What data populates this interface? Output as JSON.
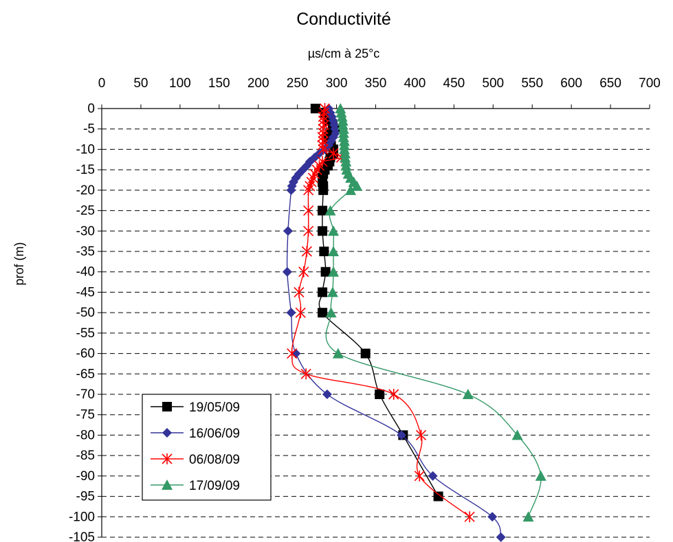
{
  "chart_data": {
    "type": "line",
    "title": "Conductivité",
    "xlabel": "µs/cm à 25°c",
    "ylabel": "prof (m)",
    "xlim": [
      0,
      700
    ],
    "ylim": [
      -105,
      0
    ],
    "x_ticks": [
      "0",
      "50",
      "100",
      "150",
      "200",
      "250",
      "300",
      "350",
      "400",
      "450",
      "500",
      "550",
      "600",
      "650",
      "700"
    ],
    "y_ticks": [
      "0",
      "-5",
      "-10",
      "-15",
      "-20",
      "-25",
      "-30",
      "-35",
      "-40",
      "-45",
      "-50",
      "-55",
      "-60",
      "-65",
      "-70",
      "-75",
      "-80",
      "-85",
      "-90",
      "-95",
      "-100",
      "-105"
    ],
    "x_axis_position": "top",
    "grid": "horizontal-dashed",
    "legend_position": "bottom-left",
    "series": [
      {
        "name": "19/05/09",
        "color": "#000000",
        "marker": "square",
        "points": [
          [
            273,
            0
          ],
          [
            285,
            -1
          ],
          [
            289,
            -2
          ],
          [
            291,
            -3
          ],
          [
            295,
            -4
          ],
          [
            298,
            -5
          ],
          [
            292,
            -6
          ],
          [
            290,
            -7
          ],
          [
            291,
            -8
          ],
          [
            293,
            -9
          ],
          [
            296,
            -10
          ],
          [
            296,
            -11
          ],
          [
            292,
            -12
          ],
          [
            291,
            -13
          ],
          [
            289,
            -14
          ],
          [
            285,
            -15
          ],
          [
            283,
            -16
          ],
          [
            282,
            -17
          ],
          [
            282,
            -18
          ],
          [
            283,
            -19
          ],
          [
            283,
            -20
          ],
          [
            282,
            -25
          ],
          [
            282,
            -30
          ],
          [
            284,
            -35
          ],
          [
            286,
            -40
          ],
          [
            282,
            -45
          ],
          [
            282,
            -50
          ],
          [
            337,
            -60
          ],
          [
            355,
            -70
          ],
          [
            385,
            -80
          ],
          [
            430,
            -95
          ]
        ]
      },
      {
        "name": "16/06/09",
        "color": "#333399",
        "marker": "diamond",
        "points": [
          [
            290,
            0
          ],
          [
            292,
            -1
          ],
          [
            294,
            -2
          ],
          [
            296,
            -3
          ],
          [
            297,
            -4
          ],
          [
            298,
            -5
          ],
          [
            299,
            -6
          ],
          [
            296,
            -7
          ],
          [
            293,
            -8
          ],
          [
            290,
            -9
          ],
          [
            285,
            -10
          ],
          [
            278,
            -11
          ],
          [
            272,
            -12
          ],
          [
            266,
            -13
          ],
          [
            262,
            -14
          ],
          [
            257,
            -15
          ],
          [
            252,
            -16
          ],
          [
            248,
            -17
          ],
          [
            245,
            -18
          ],
          [
            243,
            -19
          ],
          [
            242,
            -20
          ],
          [
            238,
            -30
          ],
          [
            237,
            -40
          ],
          [
            242,
            -50
          ],
          [
            248,
            -60
          ],
          [
            288,
            -70
          ],
          [
            383,
            -80
          ],
          [
            423,
            -90
          ],
          [
            499,
            -100
          ],
          [
            510,
            -105
          ]
        ]
      },
      {
        "name": "06/08/09",
        "color": "#ff0000",
        "marker": "star",
        "points": [
          [
            285,
            0
          ],
          [
            284,
            -1
          ],
          [
            283,
            -2
          ],
          [
            283,
            -3
          ],
          [
            284,
            -4
          ],
          [
            283,
            -5
          ],
          [
            283,
            -6
          ],
          [
            282,
            -7
          ],
          [
            283,
            -8
          ],
          [
            282,
            -9
          ],
          [
            283,
            -10
          ],
          [
            296,
            -11
          ],
          [
            306,
            -12
          ],
          [
            282,
            -13
          ],
          [
            278,
            -14
          ],
          [
            275,
            -15
          ],
          [
            272,
            -16
          ],
          [
            270,
            -17
          ],
          [
            268,
            -18
          ],
          [
            266,
            -19
          ],
          [
            264,
            -20
          ],
          [
            264,
            -25
          ],
          [
            264,
            -30
          ],
          [
            262,
            -35
          ],
          [
            258,
            -40
          ],
          [
            252,
            -45
          ],
          [
            254,
            -50
          ],
          [
            243,
            -60
          ],
          [
            261,
            -65
          ],
          [
            373,
            -70
          ],
          [
            408,
            -80
          ],
          [
            406,
            -90
          ],
          [
            470,
            -100
          ]
        ]
      },
      {
        "name": "17/09/09",
        "color": "#339966",
        "marker": "triangle",
        "points": [
          [
            305,
            0
          ],
          [
            306,
            -1
          ],
          [
            307,
            -2
          ],
          [
            308,
            -3
          ],
          [
            308,
            -4
          ],
          [
            309,
            -5
          ],
          [
            309,
            -6
          ],
          [
            309,
            -7
          ],
          [
            310,
            -8
          ],
          [
            310,
            -9
          ],
          [
            310,
            -10
          ],
          [
            311,
            -11
          ],
          [
            311,
            -12
          ],
          [
            312,
            -13
          ],
          [
            312,
            -14
          ],
          [
            313,
            -15
          ],
          [
            315,
            -16
          ],
          [
            318,
            -17
          ],
          [
            322,
            -18
          ],
          [
            326,
            -19
          ],
          [
            318,
            -20
          ],
          [
            292,
            -25
          ],
          [
            296,
            -30
          ],
          [
            296,
            -35
          ],
          [
            296,
            -40
          ],
          [
            295,
            -45
          ],
          [
            293,
            -50
          ],
          [
            302,
            -60
          ],
          [
            468,
            -70
          ],
          [
            531,
            -80
          ],
          [
            561,
            -90
          ],
          [
            545,
            -100
          ]
        ]
      }
    ]
  }
}
